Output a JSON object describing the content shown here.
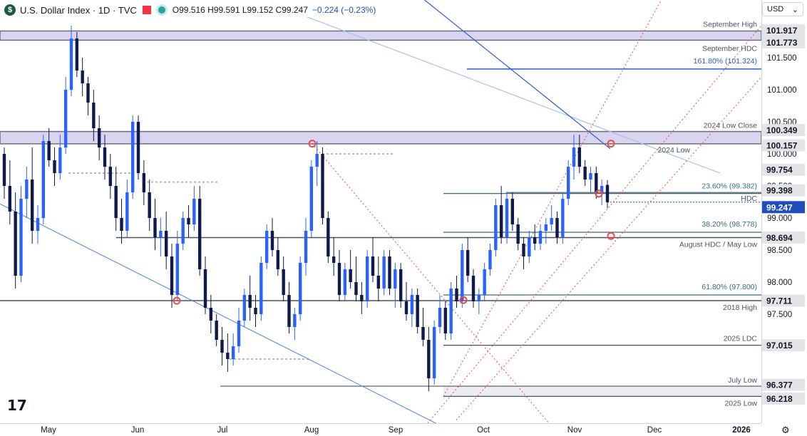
{
  "header": {
    "title": "U.S. Dollar Index · 1D · TVC",
    "ohlc": "O99.516 H99.591 L99.152 C99.247",
    "change": "−0.224 (−0.23%)"
  },
  "currency_select": {
    "label": "USD"
  },
  "colors": {
    "bull": "#2962ff",
    "bear": "#0d1a4a",
    "band_fill": "#d9d4ef",
    "band_edge": "#6a6f7c",
    "level": "#4c525e",
    "fib": "#3a6b78",
    "blue_line": "#2a5cd0",
    "red": "#ef4a4a",
    "tag_dark": "#131722"
  },
  "chart_data": {
    "type": "candlestick",
    "title": "U.S. Dollar Index · 1D · TVC",
    "x_labels": [
      "May",
      "Jun",
      "Jul",
      "Aug",
      "Sep",
      "Oct",
      "Nov",
      "Dec",
      "2026"
    ],
    "y_ticks": [
      101.5,
      101.0,
      100.5,
      100.0,
      99.5,
      99.0,
      98.5,
      98.0,
      97.5
    ],
    "y_tick_labels": [
      "101.500",
      "101.000",
      "100.500",
      "100.000",
      "99.500",
      "99.000",
      "98.500",
      "98.000",
      "97.500"
    ],
    "ylim": [
      95.8,
      102.4
    ],
    "last_close": 99.247,
    "candles": [
      [
        100.0,
        100.1,
        99.3,
        99.5
      ],
      [
        99.5,
        99.9,
        98.9,
        99.1
      ],
      [
        99.1,
        99.4,
        97.9,
        98.1
      ],
      [
        98.1,
        99.5,
        98.0,
        99.3
      ],
      [
        99.3,
        99.8,
        99.0,
        99.6
      ],
      [
        99.6,
        100.1,
        98.6,
        98.8
      ],
      [
        98.8,
        99.2,
        98.6,
        99.0
      ],
      [
        99.0,
        100.3,
        98.9,
        100.2
      ],
      [
        100.2,
        100.4,
        99.8,
        99.9
      ],
      [
        99.9,
        100.1,
        99.5,
        99.7
      ],
      [
        99.7,
        100.3,
        99.6,
        100.1
      ],
      [
        100.1,
        101.2,
        100.0,
        101.0
      ],
      [
        101.0,
        102.0,
        100.9,
        101.8
      ],
      [
        101.8,
        101.9,
        101.2,
        101.3
      ],
      [
        101.3,
        101.5,
        100.9,
        101.1
      ],
      [
        101.1,
        101.2,
        100.6,
        100.8
      ],
      [
        100.8,
        101.0,
        100.2,
        100.4
      ],
      [
        100.4,
        100.6,
        99.9,
        100.1
      ],
      [
        100.1,
        100.3,
        99.6,
        99.8
      ],
      [
        99.8,
        100.0,
        99.3,
        99.5
      ],
      [
        99.5,
        99.8,
        98.8,
        99.0
      ],
      [
        99.0,
        99.3,
        98.6,
        98.8
      ],
      [
        98.8,
        99.6,
        98.7,
        99.4
      ],
      [
        99.4,
        100.6,
        99.3,
        100.5
      ],
      [
        100.5,
        100.6,
        99.6,
        99.7
      ],
      [
        99.7,
        99.9,
        99.2,
        99.4
      ],
      [
        99.4,
        99.6,
        98.8,
        99.0
      ],
      [
        99.0,
        99.3,
        98.5,
        98.7
      ],
      [
        98.7,
        99.0,
        98.4,
        98.8
      ],
      [
        98.8,
        99.1,
        98.2,
        98.4
      ],
      [
        98.4,
        98.6,
        97.6,
        97.8
      ],
      [
        97.8,
        98.8,
        97.7,
        98.6
      ],
      [
        98.6,
        99.1,
        98.5,
        99.0
      ],
      [
        99.0,
        99.2,
        98.7,
        98.9
      ],
      [
        98.9,
        99.5,
        98.8,
        99.3
      ],
      [
        99.3,
        99.5,
        98.1,
        98.2
      ],
      [
        98.2,
        98.4,
        97.5,
        97.6
      ],
      [
        97.6,
        97.8,
        97.2,
        97.4
      ],
      [
        97.4,
        97.5,
        97.0,
        97.1
      ],
      [
        97.1,
        97.3,
        96.7,
        96.9
      ],
      [
        96.9,
        97.2,
        96.6,
        96.8
      ],
      [
        96.8,
        97.2,
        96.7,
        97.0
      ],
      [
        97.0,
        97.6,
        96.9,
        97.4
      ],
      [
        97.4,
        97.9,
        97.3,
        97.8
      ],
      [
        97.8,
        98.1,
        97.4,
        97.6
      ],
      [
        97.6,
        97.8,
        97.3,
        97.5
      ],
      [
        97.5,
        98.4,
        97.4,
        98.3
      ],
      [
        98.3,
        98.9,
        98.2,
        98.8
      ],
      [
        98.8,
        99.0,
        98.4,
        98.5
      ],
      [
        98.5,
        98.7,
        98.1,
        98.2
      ],
      [
        98.2,
        98.4,
        97.7,
        97.8
      ],
      [
        97.8,
        98.0,
        97.2,
        97.3
      ],
      [
        97.3,
        97.6,
        97.1,
        97.5
      ],
      [
        97.5,
        98.4,
        97.4,
        98.3
      ],
      [
        98.3,
        99.0,
        98.1,
        98.8
      ],
      [
        98.8,
        99.9,
        98.7,
        99.8
      ],
      [
        99.8,
        100.2,
        99.5,
        100.0
      ],
      [
        100.0,
        100.1,
        98.9,
        99.0
      ],
      [
        99.0,
        99.1,
        98.3,
        98.4
      ],
      [
        98.4,
        98.7,
        98.1,
        98.3
      ],
      [
        98.3,
        98.5,
        97.7,
        97.8
      ],
      [
        97.8,
        98.3,
        97.7,
        98.2
      ],
      [
        98.2,
        98.5,
        97.9,
        98.0
      ],
      [
        98.0,
        98.4,
        97.7,
        97.8
      ],
      [
        97.8,
        98.0,
        97.5,
        97.7
      ],
      [
        97.7,
        98.5,
        97.6,
        98.4
      ],
      [
        98.4,
        98.7,
        98.0,
        98.1
      ],
      [
        98.1,
        98.4,
        97.7,
        97.9
      ],
      [
        97.9,
        98.5,
        97.8,
        98.4
      ],
      [
        98.4,
        98.5,
        97.8,
        97.9
      ],
      [
        97.9,
        98.3,
        97.6,
        98.2
      ],
      [
        98.2,
        98.3,
        97.6,
        97.7
      ],
      [
        97.7,
        98.0,
        97.4,
        97.5
      ],
      [
        97.5,
        97.9,
        97.3,
        97.8
      ],
      [
        97.8,
        97.9,
        97.2,
        97.3
      ],
      [
        97.3,
        97.6,
        97.0,
        97.1
      ],
      [
        97.1,
        97.3,
        96.3,
        96.5
      ],
      [
        96.5,
        97.4,
        96.4,
        97.3
      ],
      [
        97.3,
        97.8,
        97.2,
        97.6
      ],
      [
        97.6,
        97.7,
        97.1,
        97.2
      ],
      [
        97.2,
        98.0,
        97.1,
        97.9
      ],
      [
        97.9,
        98.1,
        97.6,
        97.7
      ],
      [
        97.7,
        98.6,
        97.6,
        98.5
      ],
      [
        98.5,
        98.7,
        98.0,
        98.1
      ],
      [
        98.1,
        98.2,
        97.6,
        97.7
      ],
      [
        97.7,
        97.9,
        97.5,
        97.8
      ],
      [
        97.8,
        98.3,
        97.7,
        98.2
      ],
      [
        98.2,
        98.6,
        98.1,
        98.5
      ],
      [
        98.5,
        99.3,
        98.4,
        99.2
      ],
      [
        99.2,
        99.5,
        98.6,
        98.7
      ],
      [
        98.7,
        99.4,
        98.6,
        99.3
      ],
      [
        99.3,
        99.4,
        98.8,
        98.9
      ],
      [
        98.9,
        99.0,
        98.5,
        98.6
      ],
      [
        98.6,
        98.7,
        98.2,
        98.4
      ],
      [
        98.4,
        98.8,
        98.3,
        98.7
      ],
      [
        98.7,
        98.9,
        98.5,
        98.6
      ],
      [
        98.6,
        98.9,
        98.5,
        98.8
      ],
      [
        98.8,
        99.0,
        98.6,
        98.9
      ],
      [
        98.9,
        99.2,
        98.8,
        99.0
      ],
      [
        99.0,
        99.1,
        98.6,
        98.7
      ],
      [
        98.7,
        99.4,
        98.6,
        99.3
      ],
      [
        99.3,
        99.9,
        99.2,
        99.8
      ],
      [
        99.8,
        100.3,
        99.6,
        100.1
      ],
      [
        100.1,
        100.3,
        99.7,
        99.8
      ],
      [
        99.8,
        99.9,
        99.5,
        99.6
      ],
      [
        99.6,
        99.8,
        99.4,
        99.7
      ],
      [
        99.7,
        99.8,
        99.3,
        99.4
      ],
      [
        99.4,
        99.6,
        99.2,
        99.5
      ],
      [
        99.516,
        99.591,
        99.152,
        99.247
      ]
    ],
    "levels": [
      {
        "label": "September High",
        "value": 101.917,
        "tag": "101.917"
      },
      {
        "label": "September HDC",
        "value": 101.773,
        "tag": "101.773"
      },
      {
        "label": "161.80% (101.324)",
        "value": 101.324
      },
      {
        "label": "2024 Low Close",
        "value": 100.349,
        "tag": "100.349"
      },
      {
        "label": "2024 Low",
        "value": 100.157,
        "tag": "100.157"
      },
      {
        "tag": "99.754",
        "value": 99.754
      },
      {
        "label": "23.60% (99.382)",
        "value": 99.382
      },
      {
        "label": "HDC",
        "value": 99.398,
        "tag": "99.398"
      },
      {
        "label": "38.20% (98.778)",
        "value": 98.778
      },
      {
        "label": "August HDC / May Low",
        "value": 98.694,
        "tag": "98.694"
      },
      {
        "label": "61.80% (97.800)",
        "value": 97.8
      },
      {
        "label": "2018 High",
        "value": 97.711,
        "tag": "97.711"
      },
      {
        "label": "2025 LDC",
        "value": 97.015,
        "tag": "97.015"
      },
      {
        "label": "July Low",
        "value": 96.377,
        "tag": "96.377"
      },
      {
        "label": "2025 Low",
        "value": 96.218,
        "tag": "96.218"
      }
    ]
  }
}
